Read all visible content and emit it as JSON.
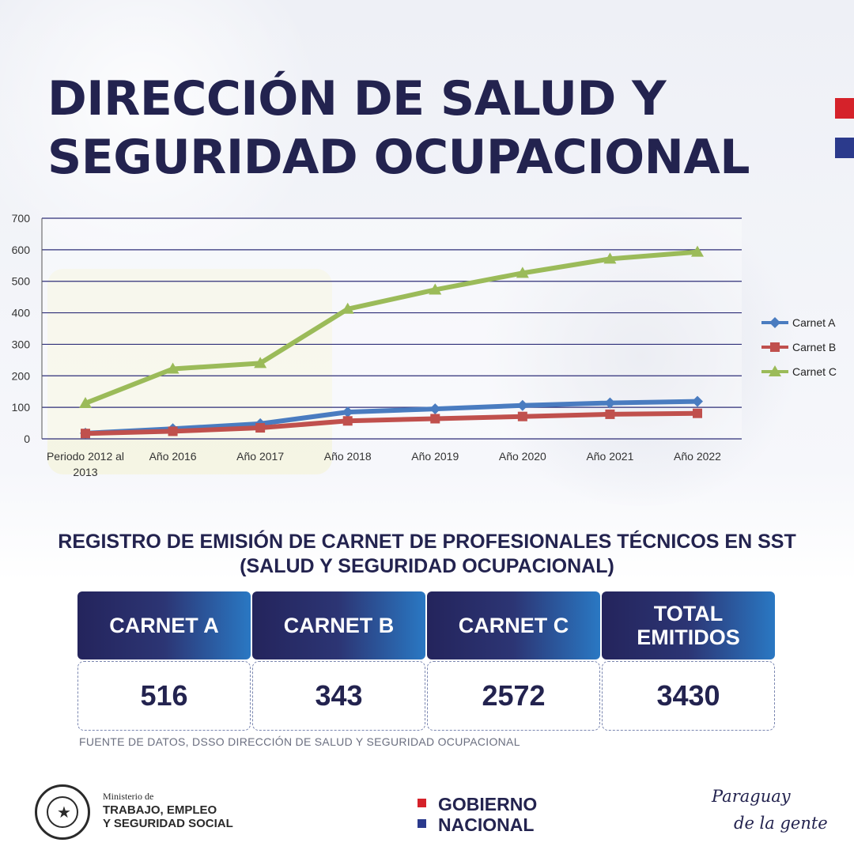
{
  "header": {
    "title_line1": "DIRECCIÓN DE SALUD Y",
    "title_line2": "SEGURIDAD OCUPACIONAL"
  },
  "chart_data": {
    "type": "line",
    "title": "",
    "xlabel": "",
    "ylabel": "",
    "ylim": [
      0,
      700
    ],
    "yticks": [
      0,
      100,
      200,
      300,
      400,
      500,
      600,
      700
    ],
    "grid": true,
    "legend_position": "right",
    "categories": [
      "Periodo 2012 al 2013",
      "Año 2016",
      "Año 2017",
      "Año 2018",
      "Año 2019",
      "Año 2020",
      "Año 2021",
      "Año 2022"
    ],
    "series": [
      {
        "name": "Carnet A",
        "color": "#4a7cc0",
        "marker": "diamond",
        "values": [
          18,
          32,
          48,
          85,
          95,
          106,
          114,
          119
        ]
      },
      {
        "name": "Carnet B",
        "color": "#c0504d",
        "marker": "square",
        "values": [
          17,
          24,
          35,
          57,
          64,
          71,
          78,
          81
        ]
      },
      {
        "name": "Carnet C",
        "color": "#9bbb59",
        "marker": "triangle",
        "values": [
          113,
          222,
          240,
          412,
          473,
          526,
          571,
          593
        ]
      }
    ]
  },
  "summary": {
    "subtitle_line1": "REGISTRO DE EMISIÓN DE CARNET DE PROFESIONALES TÉCNICOS EN SST",
    "subtitle_line2": "(SALUD Y SEGURIDAD OCUPACIONAL)",
    "cards": [
      {
        "label": "CARNET A",
        "value": "516"
      },
      {
        "label": "CARNET B",
        "value": "343"
      },
      {
        "label": "CARNET C",
        "value": "2572"
      },
      {
        "label_line1": "TOTAL",
        "label_line2": "EMITIDOS",
        "value": "3430"
      }
    ],
    "source": "FUENTE DE DATOS, DSSO DIRECCIÓN DE SALUD Y SEGURIDAD OCUPACIONAL"
  },
  "footer": {
    "ministry_small": "Ministerio de",
    "ministry_line1": "TRABAJO, EMPLEO",
    "ministry_line2": "Y SEGURIDAD SOCIAL",
    "seal_text": "REPÚBLICA DEL PARAGUAY",
    "gov_line1": "GOBIERNO",
    "gov_line2": "NACIONAL",
    "slogan_line1": "Paraguay",
    "slogan_line2": "de la gente",
    "flag_colors": [
      "#d5222a",
      "#ffffff",
      "#2b3a8c"
    ]
  }
}
